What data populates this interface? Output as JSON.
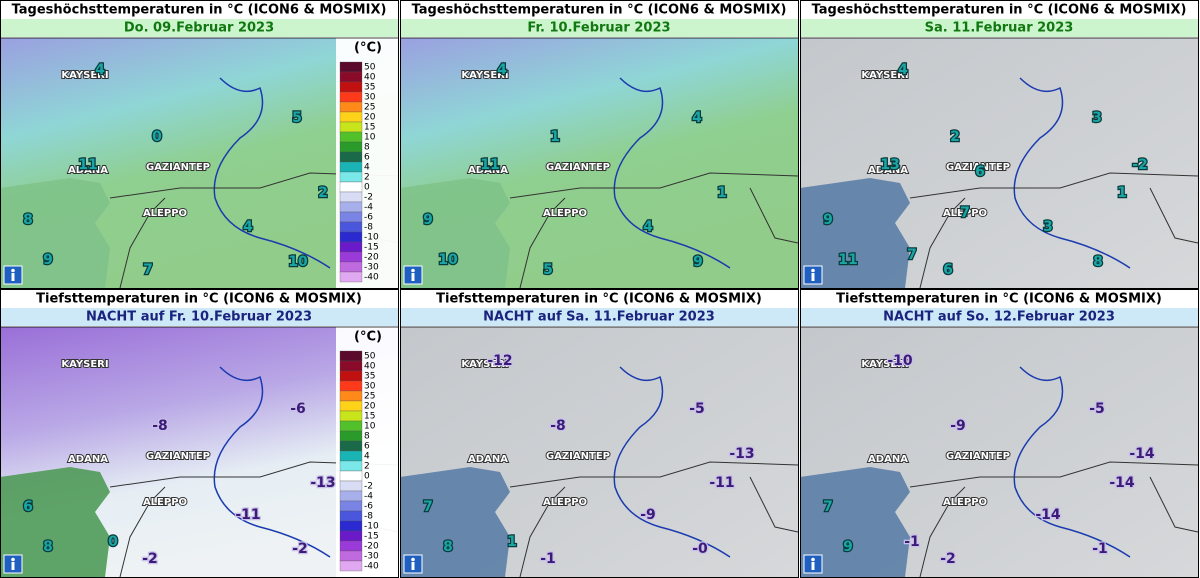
{
  "panels": [
    {
      "title": "Tageshöchsttemperaturen in °C (ICON6 & MOSMIX)",
      "date": "Do. 09.Februar 2023",
      "cities": [
        "KAYSERI",
        "ADANA",
        "GAZIANTEP",
        "ALEPPO"
      ],
      "temperatures": [
        "4",
        "5",
        "0",
        "11",
        "2",
        "8",
        "4",
        "9",
        "7",
        "10"
      ]
    },
    {
      "title": "Tageshöchsttemperaturen in °C (ICON6 & MOSMIX)",
      "date": "Fr. 10.Februar 2023",
      "cities": [
        "KAYSERI",
        "ADANA",
        "GAZIANTEP",
        "ALEPPO"
      ],
      "temperatures": [
        "4",
        "4",
        "1",
        "11",
        "1",
        "9",
        "4",
        "10",
        "5",
        "9"
      ]
    },
    {
      "title": "Tageshöchsttemperaturen in °C (ICON6 & MOSMIX)",
      "date": "Sa. 11.Februar 2023",
      "cities": [
        "KAYSERI",
        "ADANA",
        "GAZIANTEP",
        "ALEPPO"
      ],
      "temperatures": [
        "4",
        "3",
        "2",
        "13",
        "6",
        "-2",
        "1",
        "9",
        "7",
        "3",
        "11",
        "7",
        "6",
        "8"
      ]
    },
    {
      "title": "Tiefsttemperaturen in °C (ICON6 & MOSMIX)",
      "date": "NACHT auf Fr. 10.Februar 2023",
      "cities": [
        "KAYSERI",
        "ADANA",
        "GAZIANTEP",
        "ALEPPO"
      ],
      "temperatures": [
        "-8",
        "-6",
        "-13",
        "6",
        "-11",
        "8",
        "0",
        "-2",
        "-2"
      ]
    },
    {
      "title": "Tiefsttemperaturen in °C (ICON6 & MOSMIX)",
      "date": "NACHT auf Sa. 11.Februar 2023",
      "cities": [
        "KAYSERI",
        "ADANA",
        "GAZIANTEP",
        "ALEPPO"
      ],
      "temperatures": [
        "-12",
        "-5",
        "-8",
        "-13",
        "-11",
        "7",
        "-9",
        "8",
        "1",
        "-1",
        "-0"
      ]
    },
    {
      "title": "Tiefsttemperaturen in °C (ICON6 & MOSMIX)",
      "date": "NACHT auf So. 12.Februar 2023",
      "cities": [
        "KAYSERI",
        "ADANA",
        "GAZIANTEP",
        "ALEPPO"
      ],
      "temperatures": [
        "-10",
        "-5",
        "-9",
        "-14",
        "-14",
        "7",
        "-14",
        "9",
        "-1",
        "-2",
        "-1"
      ]
    }
  ],
  "legend": {
    "unit": "(°C)",
    "labels": [
      "50",
      "40",
      "35",
      "30",
      "25",
      "20",
      "15",
      "10",
      "8",
      "6",
      "4",
      "2",
      "0",
      "-2",
      "-4",
      "-6",
      "-8",
      "-10",
      "-15",
      "-20",
      "-30",
      "-40"
    ]
  }
}
